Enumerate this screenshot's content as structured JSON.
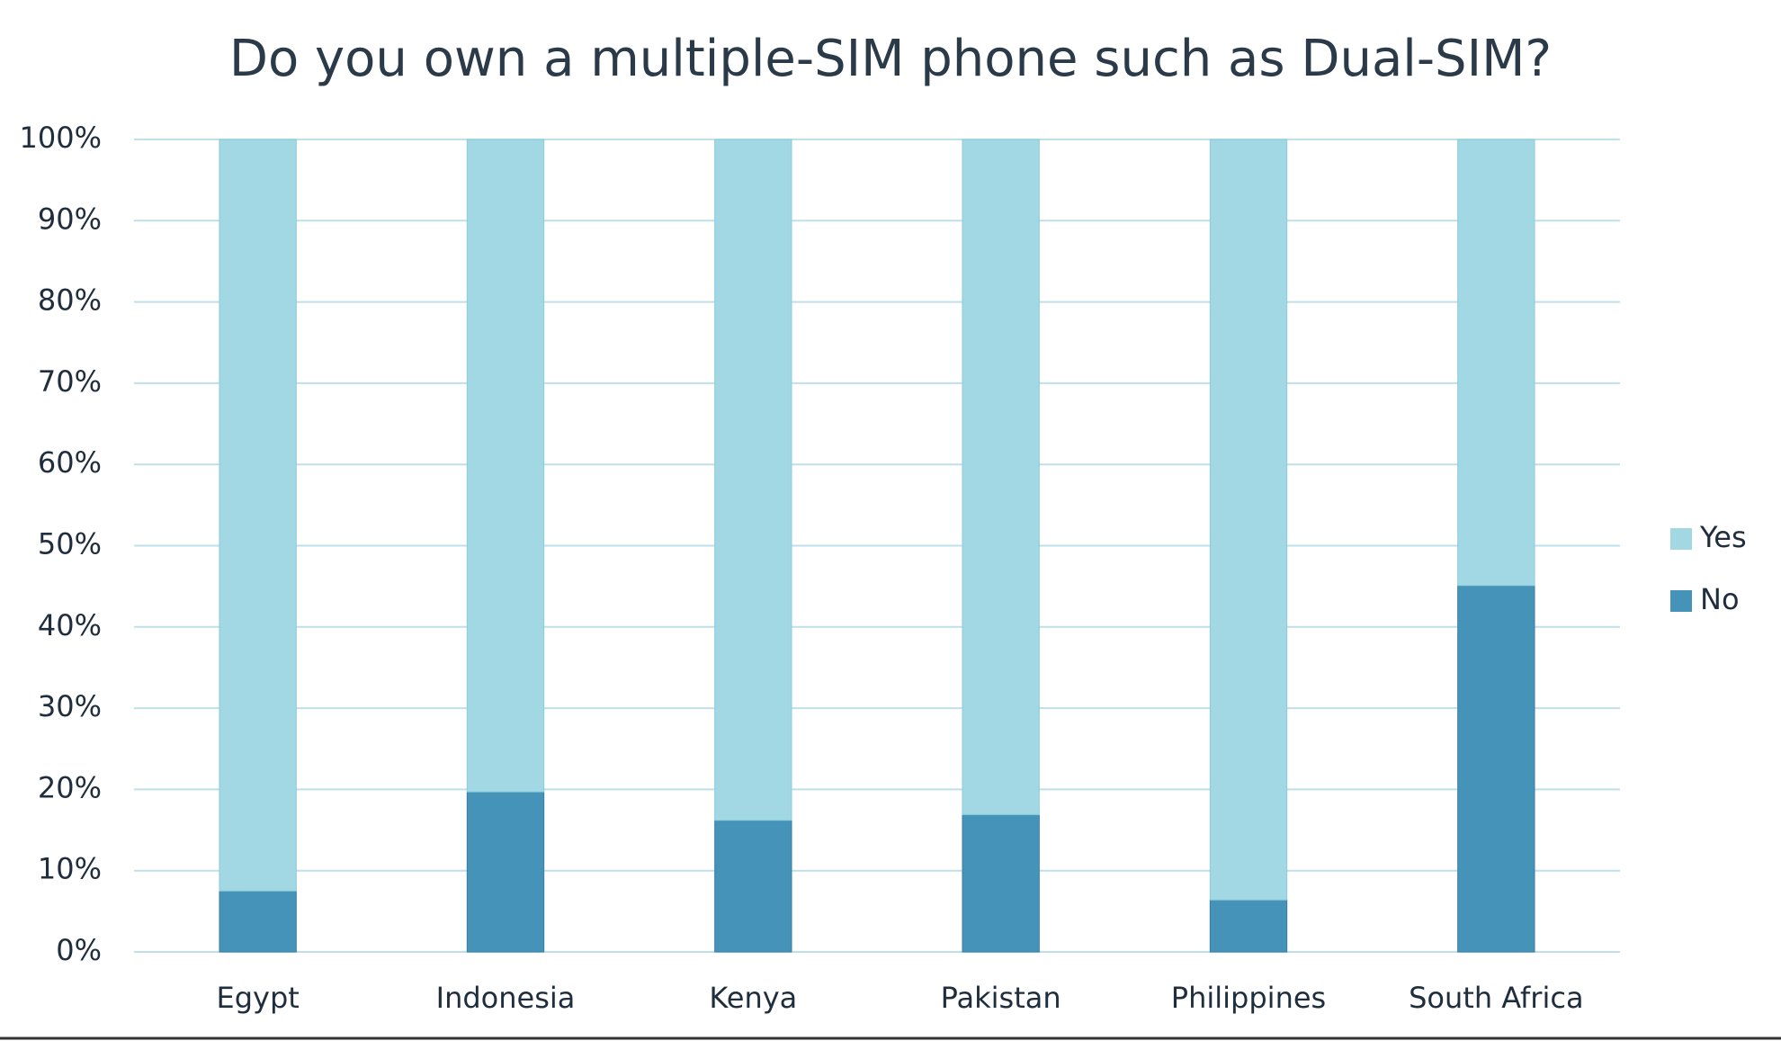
{
  "chart_data": {
    "type": "stacked-bar",
    "title": "Do you own a multiple-SIM phone such as Dual-SIM?",
    "categories": [
      "Egypt",
      "Indonesia",
      "Kenya",
      "Pakistan",
      "Philippines",
      "South Africa"
    ],
    "series": [
      {
        "name": "No",
        "color": "#4593b9",
        "values": [
          7.5,
          19.7,
          16.2,
          16.9,
          6.4,
          45.1
        ]
      },
      {
        "name": "Yes",
        "color": "#a2d7e4",
        "values": [
          92.5,
          80.3,
          83.8,
          83.1,
          93.6,
          54.9
        ]
      }
    ],
    "ylim": [
      0,
      100
    ],
    "yticks": [
      {
        "value": 0,
        "label": "0%"
      },
      {
        "value": 10,
        "label": "10%"
      },
      {
        "value": 20,
        "label": "20%"
      },
      {
        "value": 30,
        "label": "30%"
      },
      {
        "value": 40,
        "label": "40%"
      },
      {
        "value": 50,
        "label": "50%"
      },
      {
        "value": 60,
        "label": "60%"
      },
      {
        "value": 70,
        "label": "70%"
      },
      {
        "value": 80,
        "label": "80%"
      },
      {
        "value": 90,
        "label": "90%"
      },
      {
        "value": 100,
        "label": "100%"
      }
    ],
    "grid": true,
    "legend": "right"
  }
}
